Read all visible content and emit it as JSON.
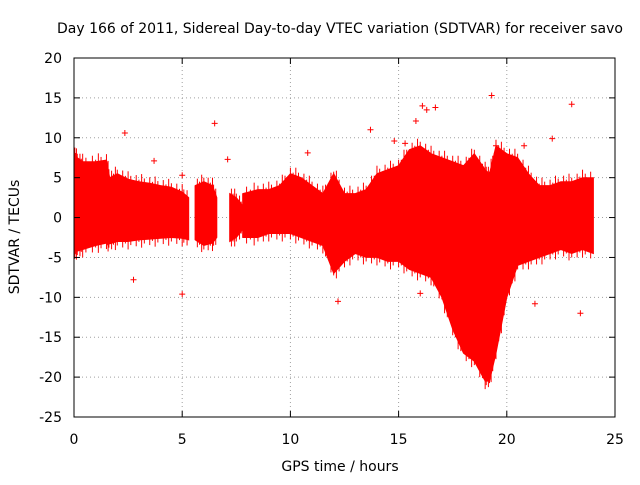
{
  "chart_data": {
    "type": "scatter",
    "title": "Day 166 of 2011, Sidereal Day-to-day VTEC variation (SDTVAR) for receiver savo",
    "xlabel": "GPS time / hours",
    "ylabel": "SDTVAR / TECUs",
    "xlim": [
      0,
      25
    ],
    "ylim": [
      -25,
      20
    ],
    "xticks": [
      "0",
      "5",
      "10",
      "15",
      "20",
      "25"
    ],
    "yticks": [
      "-25",
      "-20",
      "-15",
      "-10",
      "-5",
      "0",
      "5",
      "10",
      "15",
      "20"
    ],
    "grid": true,
    "marker": "+",
    "series_color": "#ff0000",
    "band_segments": [
      {
        "x": [
          0.0,
          0.15,
          0.4,
          1.0,
          1.5,
          1.65,
          2.0,
          2.5,
          3.0,
          3.5,
          4.0,
          4.5,
          5.0,
          5.3
        ],
        "upper": [
          8.2,
          7.5,
          7.0,
          7.0,
          7.2,
          5.0,
          5.5,
          4.8,
          4.5,
          4.3,
          4.0,
          3.8,
          3.2,
          2.5
        ],
        "lower": [
          -4.5,
          -4.2,
          -4.0,
          -3.5,
          -3.2,
          -3.3,
          -3.0,
          -3.0,
          -2.8,
          -2.7,
          -2.6,
          -2.5,
          -2.6,
          -2.8
        ]
      },
      {
        "x": [
          5.6,
          6.0,
          6.4,
          6.6
        ],
        "upper": [
          4.0,
          4.5,
          4.0,
          2.5
        ],
        "lower": [
          -2.8,
          -3.5,
          -3.2,
          -2.5
        ]
      },
      {
        "x": [
          7.2,
          7.5,
          7.8
        ],
        "upper": [
          3.0,
          2.5,
          1.5
        ],
        "lower": [
          -3.0,
          -2.5,
          -1.5
        ]
      },
      {
        "x": [
          7.8,
          8.5,
          9.0,
          9.5,
          10.0,
          10.5,
          11.0,
          11.5,
          12.0,
          12.5,
          13.0,
          13.5,
          14.0,
          14.5,
          15.0,
          15.5,
          16.0,
          16.5,
          17.0,
          17.5,
          18.0,
          18.5,
          19.0,
          19.2,
          19.5,
          20.0,
          20.5,
          21.0,
          21.5,
          22.0,
          22.5,
          23.0,
          23.5,
          24.0
        ],
        "upper": [
          3.0,
          3.5,
          3.5,
          4.0,
          5.5,
          5.0,
          4.0,
          3.0,
          5.5,
          3.0,
          3.0,
          3.5,
          5.5,
          6.0,
          6.5,
          8.5,
          9.0,
          8.0,
          7.5,
          7.0,
          6.5,
          8.0,
          6.0,
          5.5,
          9.0,
          8.0,
          7.5,
          5.5,
          4.0,
          4.0,
          4.5,
          4.5,
          5.0,
          5.0
        ],
        "lower": [
          -2.5,
          -2.5,
          -2.0,
          -2.0,
          -2.0,
          -2.5,
          -3.0,
          -3.5,
          -7.0,
          -5.5,
          -4.5,
          -5.0,
          -5.0,
          -5.5,
          -5.5,
          -6.5,
          -7.0,
          -7.5,
          -10.0,
          -14.0,
          -17.0,
          -18.0,
          -20.5,
          -20.5,
          -17.0,
          -10.0,
          -6.0,
          -5.5,
          -5.0,
          -4.5,
          -4.0,
          -4.5,
          -4.0,
          -4.5
        ]
      }
    ],
    "outliers": [
      {
        "x": 2.35,
        "y": 10.6
      },
      {
        "x": 3.7,
        "y": 7.1
      },
      {
        "x": 5.0,
        "y": 5.3
      },
      {
        "x": 6.5,
        "y": 11.8
      },
      {
        "x": 7.1,
        "y": 7.3
      },
      {
        "x": 10.8,
        "y": 8.1
      },
      {
        "x": 13.7,
        "y": 11.0
      },
      {
        "x": 14.8,
        "y": 9.6
      },
      {
        "x": 15.3,
        "y": 9.3
      },
      {
        "x": 15.8,
        "y": 12.1
      },
      {
        "x": 16.1,
        "y": 14.0
      },
      {
        "x": 16.3,
        "y": 13.5
      },
      {
        "x": 16.7,
        "y": 13.8
      },
      {
        "x": 19.3,
        "y": 15.3
      },
      {
        "x": 20.8,
        "y": 9.0
      },
      {
        "x": 22.1,
        "y": 9.9
      },
      {
        "x": 23.0,
        "y": 14.2
      },
      {
        "x": 23.4,
        "y": -12.0
      },
      {
        "x": 5.0,
        "y": -9.6
      },
      {
        "x": 16.0,
        "y": -9.5
      },
      {
        "x": 12.2,
        "y": -10.5
      },
      {
        "x": 2.75,
        "y": -7.8
      },
      {
        "x": 21.3,
        "y": -10.8
      },
      {
        "x": 19.5,
        "y": 9.0
      }
    ]
  }
}
